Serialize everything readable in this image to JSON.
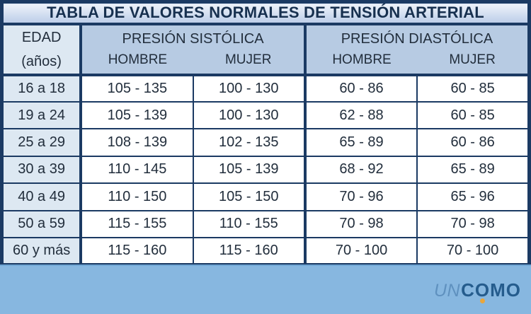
{
  "chart_data": {
    "type": "table",
    "title": "TABLA DE VALORES NORMALES DE TENSIÓN ARTERIAL",
    "age_header": {
      "line1": "EDAD",
      "line2": "(años)"
    },
    "group_headers": [
      "PRESIÓN SISTÓLICA",
      "PRESIÓN DIASTÓLICA"
    ],
    "sub_headers": [
      "HOMBRE",
      "MUJER",
      "HOMBRE",
      "MUJER"
    ],
    "rows": [
      {
        "age": "16 a 18",
        "values": [
          "105 - 135",
          "100 - 130",
          "60 - 86",
          "60 - 85"
        ]
      },
      {
        "age": "19 a 24",
        "values": [
          "105 - 139",
          "100 - 130",
          "62 - 88",
          "60 - 85"
        ]
      },
      {
        "age": "25 a 29",
        "values": [
          "108 - 139",
          "102 - 135",
          "65 - 89",
          "60 - 86"
        ]
      },
      {
        "age": "30 a 39",
        "values": [
          "110 - 145",
          "105 - 139",
          "68 - 92",
          "65 - 89"
        ]
      },
      {
        "age": "40 a 49",
        "values": [
          "110 - 150",
          "105 - 150",
          "70 - 96",
          "65 - 96"
        ]
      },
      {
        "age": "50 a 59",
        "values": [
          "115 - 155",
          "110 - 155",
          "70 - 98",
          "70 - 98"
        ]
      },
      {
        "age": "60 y más",
        "values": [
          "115 - 160",
          "115 - 160",
          "70 - 100",
          "70 - 100"
        ]
      }
    ]
  },
  "footer": {
    "logo_un": "UN",
    "logo_como": "COMO"
  },
  "colors": {
    "border_navy": "#1b3a63",
    "title_bg_top": "#eef3fa",
    "title_bg_bottom": "#bccde8",
    "header_bg": "#b7cbe3",
    "age_bg": "#dde8f2",
    "cell_bg": "#ffffff",
    "footer_bg": "#87b7e0",
    "footer_edge": "#6fa6d4",
    "text_dark": "#222e3c",
    "logo_un_color": "#5f91bf",
    "logo_como_color": "#255c8d",
    "logo_dot_color": "#e9a63c"
  }
}
